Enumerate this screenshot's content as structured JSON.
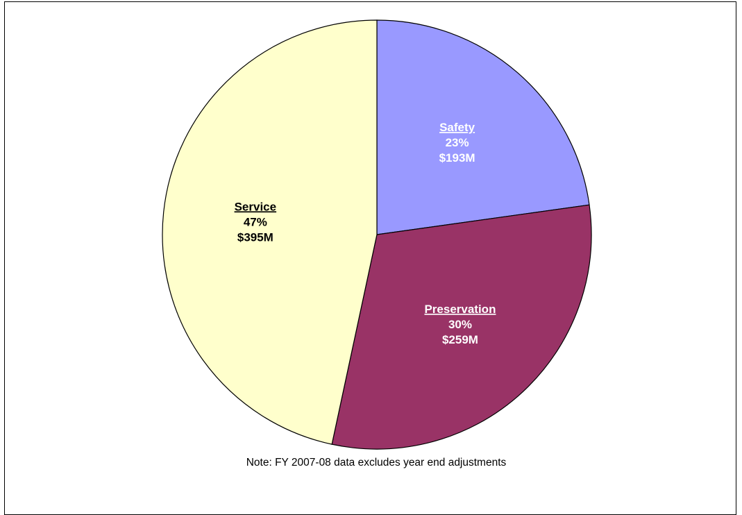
{
  "chart_data": {
    "type": "pie",
    "slices": [
      {
        "name": "Safety",
        "percent_label": "23%",
        "amount_label": "$193M",
        "value": 193,
        "color": "#9999ff",
        "text_color": "#ffffff"
      },
      {
        "name": "Preservation ",
        "percent_label": "30%",
        "amount_label": "$259M",
        "value": 259,
        "color": "#993366",
        "text_color": "#ffffff"
      },
      {
        "name": "Service",
        "percent_label": "47%",
        "amount_label": "$395M",
        "value": 395,
        "color": "#ffffcc",
        "text_color": "#000000"
      }
    ],
    "start_angle_deg": 0,
    "direction": "clockwise",
    "legend": "none"
  },
  "note": "Note: FY 2007-08 data excludes year end adjustments"
}
